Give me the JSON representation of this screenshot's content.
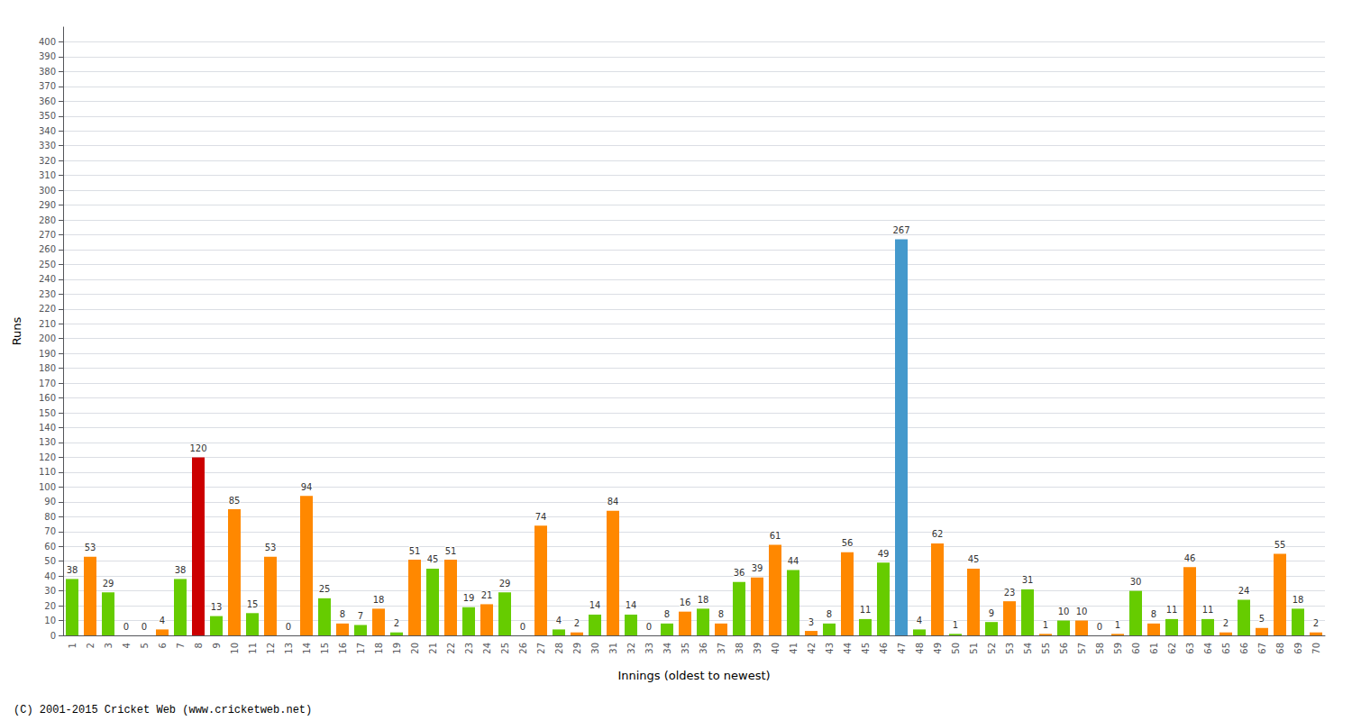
{
  "chart_data": {
    "type": "bar",
    "xlabel": "Innings (oldest to newest)",
    "ylabel": "Runs",
    "annotations": [
      "(C) 2001-2015 Cricket Web (www.cricketweb.net)"
    ],
    "categories": [
      "1",
      "2",
      "3",
      "4",
      "5",
      "6",
      "7",
      "8",
      "9",
      "10",
      "11",
      "12",
      "13",
      "14",
      "15",
      "16",
      "17",
      "18",
      "19",
      "20",
      "21",
      "22",
      "23",
      "24",
      "25",
      "26",
      "27",
      "28",
      "29",
      "30",
      "31",
      "32",
      "33",
      "34",
      "35",
      "36",
      "37",
      "38",
      "39",
      "40",
      "41",
      "42",
      "43",
      "44",
      "45",
      "46",
      "47",
      "48",
      "49",
      "50",
      "51",
      "52",
      "53",
      "54",
      "55",
      "56",
      "57",
      "58",
      "59",
      "60",
      "61",
      "62",
      "63",
      "64",
      "65",
      "66",
      "67",
      "68",
      "69",
      "70"
    ],
    "values": [
      38,
      53,
      29,
      0,
      0,
      4,
      38,
      120,
      13,
      85,
      15,
      53,
      0,
      94,
      25,
      8,
      7,
      18,
      2,
      51,
      45,
      51,
      19,
      21,
      29,
      0,
      74,
      4,
      2,
      14,
      84,
      14,
      0,
      8,
      16,
      18,
      8,
      36,
      39,
      61,
      44,
      3,
      8,
      56,
      11,
      49,
      267,
      4,
      62,
      1,
      45,
      9,
      23,
      31,
      1,
      10,
      10,
      0,
      1,
      30,
      8,
      11,
      46,
      11,
      2,
      24,
      5,
      55,
      18,
      2
    ],
    "colors": [
      "#66cc00",
      "#ff8800",
      "#66cc00",
      "#ff8800",
      "#66cc00",
      "#ff8800",
      "#66cc00",
      "#cc0000",
      "#66cc00",
      "#ff8800",
      "#66cc00",
      "#ff8800",
      "#66cc00",
      "#ff8800",
      "#66cc00",
      "#ff8800",
      "#66cc00",
      "#ff8800",
      "#66cc00",
      "#ff8800",
      "#66cc00",
      "#ff8800",
      "#66cc00",
      "#ff8800",
      "#66cc00",
      "#ff8800",
      "#ff8800",
      "#66cc00",
      "#ff8800",
      "#66cc00",
      "#ff8800",
      "#66cc00",
      "#ff8800",
      "#66cc00",
      "#ff8800",
      "#66cc00",
      "#ff8800",
      "#66cc00",
      "#ff8800",
      "#ff8800",
      "#66cc00",
      "#ff8800",
      "#66cc00",
      "#ff8800",
      "#66cc00",
      "#66cc00",
      "#4499cc",
      "#66cc00",
      "#ff8800",
      "#66cc00",
      "#ff8800",
      "#66cc00",
      "#ff8800",
      "#66cc00",
      "#ff8800",
      "#66cc00",
      "#ff8800",
      "#66cc00",
      "#ff8800",
      "#66cc00",
      "#ff8800",
      "#66cc00",
      "#ff8800",
      "#66cc00",
      "#ff8800",
      "#66cc00",
      "#ff8800",
      "#ff8800",
      "#66cc00",
      "#ff8800"
    ],
    "ylim": [
      0,
      410
    ],
    "yticks": [
      0,
      10,
      20,
      30,
      40,
      50,
      60,
      70,
      80,
      90,
      100,
      110,
      120,
      130,
      140,
      150,
      160,
      170,
      180,
      190,
      200,
      210,
      220,
      230,
      240,
      250,
      260,
      270,
      280,
      290,
      300,
      310,
      320,
      330,
      340,
      350,
      360,
      370,
      380,
      390,
      400
    ],
    "grid": true,
    "data_labels": true
  }
}
